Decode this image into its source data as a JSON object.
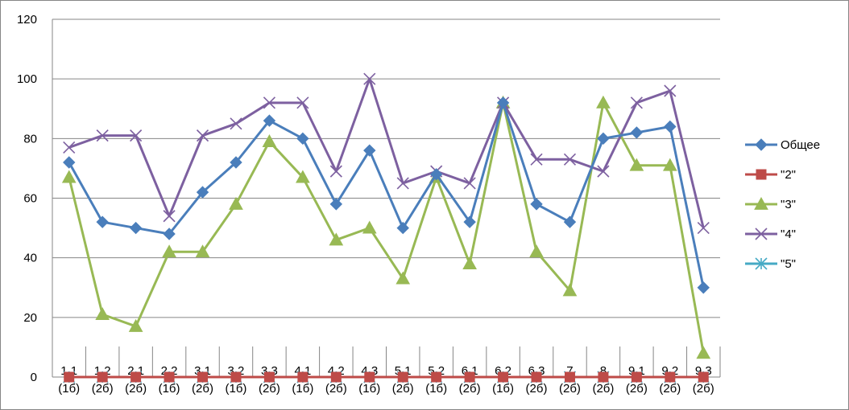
{
  "chart_data": {
    "type": "line",
    "title": "",
    "xlabel": "",
    "ylabel": "",
    "ylim": [
      0,
      120
    ],
    "yticks": [
      0,
      20,
      40,
      60,
      80,
      100,
      120
    ],
    "grid": true,
    "legend_position": "right",
    "categories": [
      [
        "1.1",
        "(1б)"
      ],
      [
        "1.2",
        "(2б)"
      ],
      [
        "2.1",
        "(2б)"
      ],
      [
        "2.2",
        "(1б)"
      ],
      [
        "3.1",
        "(2б)"
      ],
      [
        "3.2",
        "(1б)"
      ],
      [
        "3.3",
        "(2б)"
      ],
      [
        "4.1",
        "(1б)"
      ],
      [
        "4.2",
        "(2б)"
      ],
      [
        "4.3",
        "(1б)"
      ],
      [
        "5.1",
        "(2б)"
      ],
      [
        "5.2",
        "(1б)"
      ],
      [
        "6.1",
        "(2б)"
      ],
      [
        "6.2",
        "(1б)"
      ],
      [
        "6.3",
        "(2б)"
      ],
      [
        "7",
        "(2б)"
      ],
      [
        "8",
        "(2б)"
      ],
      [
        "9.1",
        "(2б)"
      ],
      [
        "9.2",
        "(2б)"
      ],
      [
        "9.3",
        "(2б)"
      ]
    ],
    "series": [
      {
        "name": "Общее",
        "color": "#4a7ebb",
        "marker": "diamond",
        "values": [
          72,
          52,
          50,
          48,
          62,
          72,
          86,
          80,
          58,
          76,
          50,
          68,
          52,
          92,
          58,
          52,
          80,
          82,
          84,
          30
        ]
      },
      {
        "name": "\"2\"",
        "color": "#be4b48",
        "marker": "square",
        "values": [
          0,
          0,
          0,
          0,
          0,
          0,
          0,
          0,
          0,
          0,
          0,
          0,
          0,
          0,
          0,
          0,
          0,
          0,
          0,
          0
        ]
      },
      {
        "name": "\"3\"",
        "color": "#98b954",
        "marker": "triangle",
        "values": [
          67,
          21,
          17,
          42,
          42,
          58,
          79,
          67,
          46,
          50,
          33,
          67,
          38,
          92,
          42,
          29,
          92,
          71,
          71,
          8
        ]
      },
      {
        "name": "\"4\"",
        "color": "#7d60a0",
        "marker": "x",
        "values": [
          77,
          81,
          81,
          54,
          81,
          85,
          92,
          92,
          69,
          100,
          65,
          69,
          65,
          92,
          73,
          73,
          69,
          92,
          96,
          50
        ]
      },
      {
        "name": "\"5\"",
        "color": "#46aac5",
        "marker": "star",
        "values": [
          0,
          0,
          0,
          0,
          0,
          0,
          0,
          0,
          0,
          0,
          0,
          0,
          0,
          0,
          0,
          0,
          0,
          0,
          0,
          0
        ]
      }
    ]
  }
}
